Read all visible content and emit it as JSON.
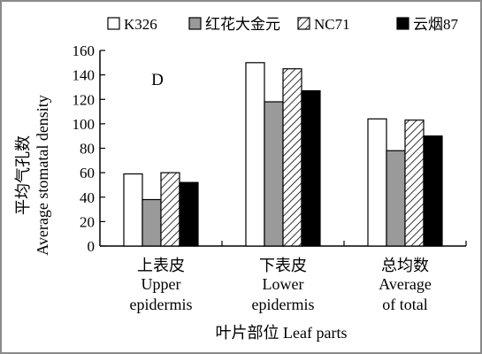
{
  "chart_data": {
    "type": "bar",
    "panel_label": "D",
    "ylabel_cn": "平均气孔数",
    "ylabel_en": "Average stomatal density",
    "xlabel": "叶片部位 Leaf parts",
    "ylim": [
      0,
      160
    ],
    "yticks": [
      0,
      20,
      40,
      60,
      80,
      100,
      120,
      140,
      160
    ],
    "grid": false,
    "legend_position": "top",
    "categories": [
      {
        "cn": "上表皮",
        "en1": "Upper",
        "en2": "epidermis"
      },
      {
        "cn": "下表皮",
        "en1": "Lower",
        "en2": "epidermis"
      },
      {
        "cn": "总均数",
        "en1": "Average",
        "en2": "of total"
      }
    ],
    "series": [
      {
        "name": "K326",
        "fill": "white",
        "values": [
          59,
          150,
          104
        ]
      },
      {
        "name": "红花大金元",
        "fill": "gray",
        "values": [
          38,
          118,
          78
        ]
      },
      {
        "name": "NC71",
        "fill": "hatched",
        "values": [
          60,
          145,
          103
        ]
      },
      {
        "name": "云烟87",
        "fill": "black",
        "values": [
          52,
          127,
          90
        ]
      }
    ],
    "colors": {
      "white": "#ffffff",
      "gray": "#9a9a9a",
      "black": "#000000",
      "stroke": "#000000"
    }
  }
}
